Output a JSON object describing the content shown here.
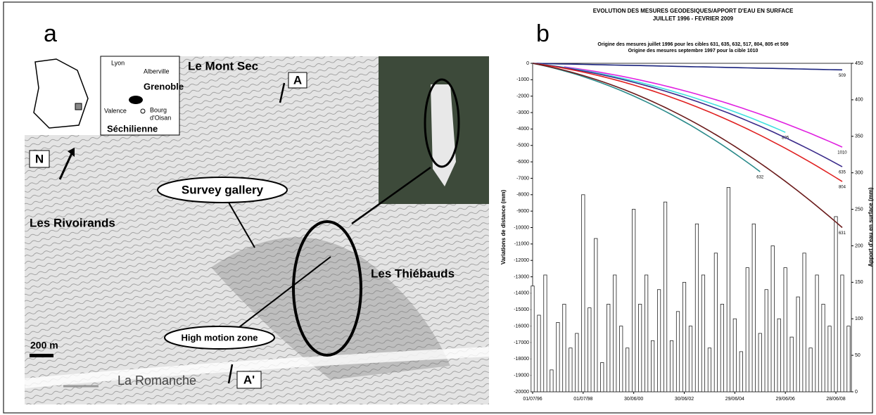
{
  "panel_a": {
    "label": "a",
    "labels": [
      "Le Mont Sec",
      "A",
      "N",
      "Survey gallery",
      "Les Rivoirands",
      "Les Thiébauds",
      "High motion zone",
      "200 m",
      "La Romanche",
      "A'"
    ],
    "inset_labels": [
      "Lyon",
      "Alberville",
      "Grenoble",
      "Valence",
      "Bourg",
      "d'Oisan",
      "Séchilienne"
    ]
  },
  "chart_data": {
    "type": "combo",
    "panel_label": "b",
    "title": [
      "EVOLUTION  DES MESURES GEODESIQUES/APPORT D'EAU EN SURFACE",
      "JUILLET 1996 - FEVRIER 2009"
    ],
    "subtitle": [
      "Origine des mesures juillet 1996 pour les cibles 631, 635, 632, 517, 804, 805 et 509",
      "Origine des mesures septembre 1997 pour la cible 1010"
    ],
    "y_label": "Variations de distance (mm)",
    "y2_label": "Apport d'eau en surface (mm)",
    "categories": [
      "01/07/96",
      null,
      null,
      null,
      null,
      null,
      null,
      null,
      "01/07/98",
      null,
      null,
      null,
      null,
      null,
      null,
      null,
      "30/06/00",
      null,
      null,
      null,
      null,
      null,
      null,
      null,
      "30/06/02",
      null,
      null,
      null,
      null,
      null,
      null,
      null,
      "29/06/04",
      null,
      null,
      null,
      null,
      null,
      null,
      null,
      "29/06/06",
      null,
      null,
      null,
      null,
      null,
      null,
      null,
      "28/06/08",
      null,
      null
    ],
    "ylim": [
      -20000,
      0
    ],
    "yticks": [
      -20000,
      -19000,
      -18000,
      -17000,
      -16000,
      -15000,
      -14000,
      -13000,
      -12000,
      -11000,
      -10000,
      -9000,
      -8000,
      -7000,
      -6000,
      -5000,
      -4000,
      -3000,
      -2000,
      -1000,
      0
    ],
    "y2lim": [
      0,
      450
    ],
    "y2ticks": [
      0,
      50,
      100,
      150,
      200,
      250,
      300,
      350,
      400,
      450
    ],
    "grid": false,
    "bars": {
      "axis": "y2",
      "color": "#ffffff",
      "values": [
        145,
        105,
        160,
        30,
        95,
        120,
        60,
        80,
        270,
        115,
        210,
        40,
        120,
        160,
        90,
        60,
        250,
        120,
        160,
        70,
        140,
        260,
        70,
        110,
        150,
        90,
        230,
        160,
        60,
        190,
        120,
        280,
        100,
        55,
        170,
        230,
        80,
        140,
        200,
        100,
        170,
        75,
        130,
        190,
        60,
        160,
        120,
        90,
        240,
        160,
        90
      ]
    },
    "series": [
      {
        "name": "509",
        "color": "#1a237e",
        "values": [
          0,
          -8,
          -16,
          -24,
          -33,
          -41,
          -49,
          -57,
          -65,
          -73,
          -82,
          -90,
          -98,
          -106,
          -114,
          -122,
          -131,
          -139,
          -147,
          -155,
          -163,
          -171,
          -180,
          -188,
          -196,
          -204,
          -212,
          -220,
          -229,
          -237,
          -245,
          -253,
          -261,
          -269,
          -278,
          -286,
          -294,
          -302,
          -310,
          -318,
          -327,
          -335,
          -343,
          -351,
          -359,
          -367,
          -376,
          -384,
          -392,
          -400,
          null
        ]
      },
      {
        "name": "1010",
        "color": "#e020e0",
        "values": [
          null,
          null,
          null,
          null,
          null,
          -217,
          -268,
          -323,
          -380,
          -440,
          -502,
          -568,
          -636,
          -707,
          -781,
          -857,
          -936,
          -1018,
          -1103,
          -1190,
          -1281,
          -1374,
          -1470,
          -1568,
          -1669,
          -1774,
          -1880,
          -1990,
          -2102,
          -2217,
          -2335,
          -2456,
          -2579,
          -2704,
          -2834,
          -2965,
          -3100,
          -3237,
          -3376,
          -3521,
          -3666,
          -3814,
          -3965,
          -4119,
          -4276,
          -4435,
          -4598,
          -4762,
          -4930,
          -5100,
          null
        ]
      },
      {
        "name": "805",
        "color": "#40e0e0",
        "values": [
          0,
          -43,
          -90,
          -139,
          -192,
          -248,
          -307,
          -370,
          -435,
          -504,
          -576,
          -650,
          -729,
          -810,
          -895,
          -982,
          -1073,
          -1166,
          -1264,
          -1364,
          -1468,
          -1574,
          -1684,
          -1797,
          -1912,
          -2032,
          -2154,
          -2281,
          -2408,
          -2541,
          -2676,
          -2814,
          -2955,
          -3100,
          -3248,
          -3398,
          -3553,
          -3710,
          -3870,
          -4034,
          -4200,
          null,
          null,
          null,
          null,
          null,
          null,
          null,
          null,
          null,
          null
        ]
      },
      {
        "name": "635",
        "color": "#3a2a8a",
        "values": [
          0,
          -47,
          -97,
          -150,
          -207,
          -268,
          -331,
          -399,
          -469,
          -543,
          -621,
          -701,
          -786,
          -873,
          -965,
          -1058,
          -1157,
          -1257,
          -1363,
          -1470,
          -1583,
          -1697,
          -1816,
          -1937,
          -2062,
          -2191,
          -2323,
          -2459,
          -2597,
          -2739,
          -2885,
          -3034,
          -3187,
          -3342,
          -3502,
          -3664,
          -3830,
          -4000,
          -4172,
          -4350,
          -4528,
          -4712,
          -4898,
          -5089,
          -5282,
          -5478,
          -5679,
          -5882,
          -6090,
          -6300,
          null
        ]
      },
      {
        "name": "804",
        "color": "#e02020",
        "values": [
          0,
          -53,
          -111,
          -171,
          -237,
          -306,
          -379,
          -456,
          -536,
          -621,
          -709,
          -801,
          -898,
          -998,
          -1102,
          -1210,
          -1322,
          -1437,
          -1557,
          -1680,
          -1809,
          -1940,
          -2075,
          -2214,
          -2357,
          -2504,
          -2655,
          -2810,
          -2968,
          -3131,
          -3297,
          -3468,
          -3642,
          -3820,
          -4002,
          -4188,
          -4378,
          -4571,
          -4769,
          -4971,
          -5175,
          -5385,
          -5598,
          -5815,
          -6036,
          -6261,
          -6491,
          -6723,
          -6960,
          -7200,
          null
        ]
      },
      {
        "name": "632",
        "color": "#2a8a8a",
        "values": [
          0,
          -80,
          -167,
          -258,
          -357,
          -461,
          -571,
          -687,
          -809,
          -936,
          -1069,
          -1208,
          -1354,
          -1505,
          -1662,
          -1824,
          -1993,
          -2167,
          -2348,
          -2534,
          -2727,
          -2924,
          -3128,
          -3338,
          -3553,
          -3775,
          -4002,
          -4237,
          -4474,
          -4720,
          -4971,
          -5228,
          -5490,
          -5759,
          -6034,
          -6313,
          -6600,
          null,
          null,
          null,
          null,
          null,
          null,
          null,
          null,
          null,
          null,
          null,
          null,
          null,
          null
        ]
      },
      {
        "name": "631",
        "color": "#6a1a1a",
        "values": [
          0,
          -74,
          -154,
          -238,
          -329,
          -425,
          -526,
          -633,
          -745,
          -862,
          -985,
          -1113,
          -1247,
          -1386,
          -1531,
          -1680,
          -1836,
          -1996,
          -2163,
          -2334,
          -2512,
          -2694,
          -2882,
          -3075,
          -3273,
          -3478,
          -3687,
          -3903,
          -4122,
          -4348,
          -4579,
          -4816,
          -5058,
          -5305,
          -5559,
          -5816,
          -6080,
          -6349,
          -6623,
          -6904,
          -7188,
          -7479,
          -7775,
          -8077,
          -8384,
          -8696,
          -9015,
          -9337,
          -9666,
          -10000,
          null
        ]
      }
    ]
  }
}
